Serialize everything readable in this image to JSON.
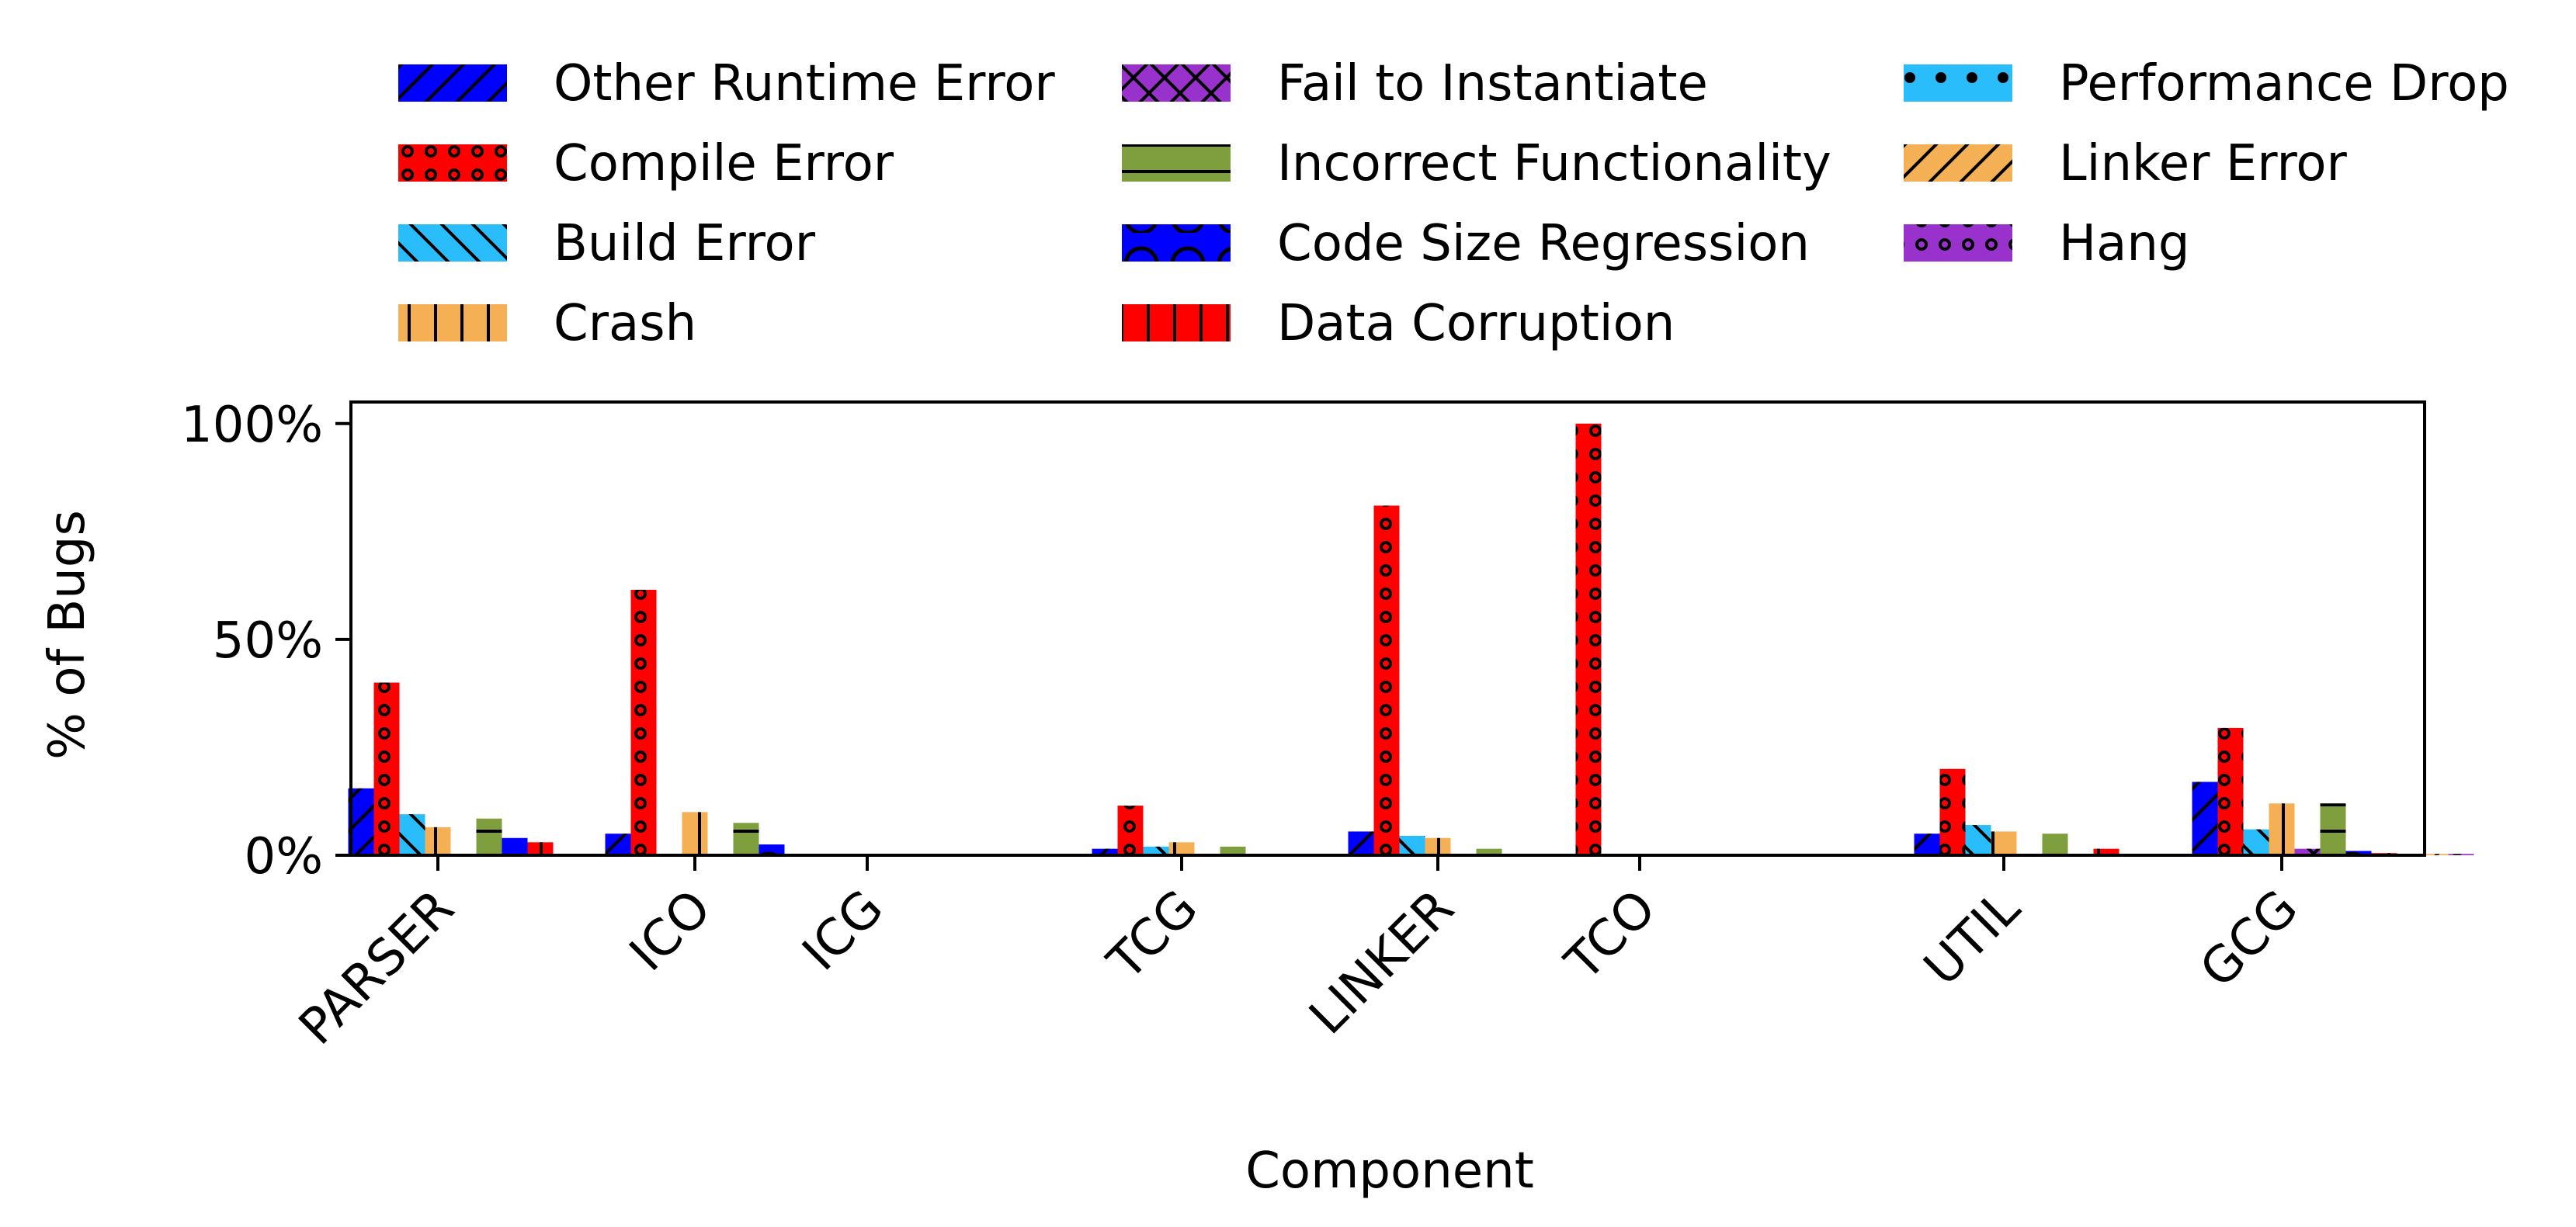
{
  "chart_data": {
    "type": "bar",
    "xlabel": "Component",
    "ylabel": "% of Bugs",
    "ylim": [
      0,
      105
    ],
    "yticks": [
      0,
      50,
      100
    ],
    "ytick_labels": [
      "0%",
      "50%",
      "100%"
    ],
    "categories": [
      "PARSER",
      "ICO",
      "ICG",
      "TCG",
      "LINKER",
      "TCO",
      "UTIL",
      "GCG"
    ],
    "legend_position": "top",
    "series": [
      {
        "name": "Other Runtime Error",
        "color": "#0000FF",
        "hatch": "slash",
        "values": [
          15.5,
          5,
          0,
          1.5,
          5.5,
          0,
          5,
          17
        ]
      },
      {
        "name": "Compile Error",
        "color": "#FF0000",
        "hatch": "dots",
        "values": [
          40,
          61.5,
          0,
          11.5,
          81,
          100,
          20,
          29.5
        ]
      },
      {
        "name": "Build Error",
        "color": "#29BDFB",
        "hatch": "backslash",
        "values": [
          9.5,
          0,
          0,
          2,
          4.5,
          0,
          7,
          6
        ]
      },
      {
        "name": "Crash",
        "color": "#F5B055",
        "hatch": "vertical",
        "values": [
          6.5,
          10,
          0,
          3,
          4,
          0,
          5.5,
          12
        ]
      },
      {
        "name": "Fail to Instantiate",
        "color": "#9932CC",
        "hatch": "cross",
        "values": [
          0,
          0,
          0,
          0,
          0,
          0,
          0,
          1.5
        ]
      },
      {
        "name": "Incorrect Functionality",
        "color": "#7F9F3F",
        "hatch": "horizontal",
        "values": [
          8.5,
          7.5,
          0,
          2,
          1.5,
          0,
          5,
          12
        ]
      },
      {
        "name": "Code Size Regression",
        "color": "#0000FF",
        "hatch": "circles",
        "values": [
          4,
          2.5,
          0,
          0,
          0,
          0,
          0,
          1
        ]
      },
      {
        "name": "Data Corruption",
        "color": "#FF0000",
        "hatch": "vertical",
        "values": [
          3,
          0,
          0,
          0,
          0,
          0,
          1.5,
          0.5
        ]
      },
      {
        "name": "Performance Drop",
        "color": "#29BDFB",
        "hatch": "bigdots",
        "values": [
          0,
          0,
          0,
          0,
          0,
          0,
          0,
          0
        ]
      },
      {
        "name": "Linker Error",
        "color": "#F5B055",
        "hatch": "slash",
        "values": [
          0,
          0,
          0,
          0,
          0,
          0,
          0,
          0.3
        ]
      },
      {
        "name": "Hang",
        "color": "#9932CC",
        "hatch": "dots",
        "values": [
          0,
          0,
          0,
          0,
          0,
          0,
          0,
          0.3
        ]
      }
    ]
  }
}
